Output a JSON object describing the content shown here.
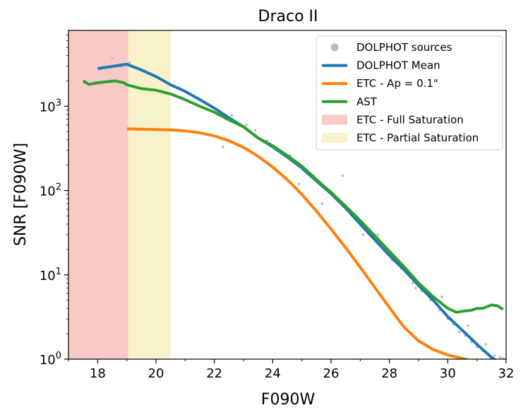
{
  "chart_data": {
    "type": "line",
    "title": "Draco II",
    "xlabel": "F090W",
    "ylabel": "SNR [F090W]",
    "xlim": [
      17,
      32
    ],
    "ylim_log10": [
      0,
      3.9
    ],
    "y_scale": "log",
    "x_ticks": [
      18,
      20,
      22,
      24,
      26,
      28,
      30,
      32
    ],
    "x_tick_labels": [
      "18",
      "20",
      "22",
      "24",
      "26",
      "28",
      "30",
      "32"
    ],
    "y_ticks": [
      1,
      10,
      100,
      1000
    ],
    "y_tick_labels": [
      {
        "base": "10",
        "exp": "0"
      },
      {
        "base": "10",
        "exp": "1"
      },
      {
        "base": "10",
        "exp": "2"
      },
      {
        "base": "10",
        "exp": "3"
      }
    ],
    "shaded_regions": [
      {
        "name": "ETC - Full Saturation",
        "x_range": [
          17,
          19.05
        ],
        "color": "#f4a6a0"
      },
      {
        "name": "ETC - Partial Saturation",
        "x_range": [
          19.05,
          20.5
        ],
        "color": "#f4e9a8"
      }
    ],
    "series": [
      {
        "name": "DOLPHOT Mean",
        "color": "#1f77b4",
        "x": [
          18.0,
          19.0,
          19.5,
          20.0,
          20.5,
          21.0,
          21.5,
          22.0,
          22.5,
          23.0,
          23.5,
          24.0,
          24.5,
          25.0,
          25.5,
          26.0,
          26.5,
          27.0,
          27.5,
          28.0,
          28.5,
          29.0,
          29.5,
          30.0,
          30.5,
          31.0,
          31.5,
          31.8
        ],
        "y": [
          2800,
          3150,
          2700,
          2250,
          1800,
          1500,
          1200,
          950,
          730,
          570,
          420,
          330,
          250,
          185,
          130,
          92,
          62,
          40,
          26,
          17,
          11.5,
          7.5,
          5,
          3.2,
          2.2,
          1.5,
          1.05,
          0.9
        ]
      },
      {
        "name": "ETC - Ap = 0.1\"",
        "color": "#ff7f0e",
        "x": [
          19.0,
          19.5,
          20.0,
          20.5,
          21.0,
          21.5,
          22.0,
          22.5,
          23.0,
          23.5,
          24.0,
          24.5,
          25.0,
          25.5,
          26.0,
          26.5,
          27.0,
          27.5,
          28.0,
          28.5,
          29.0,
          29.5,
          30.0,
          30.5,
          30.7
        ],
        "y": [
          540,
          535,
          530,
          525,
          510,
          485,
          445,
          390,
          325,
          255,
          190,
          135,
          90,
          57,
          35,
          21,
          12.3,
          7.1,
          4.1,
          2.4,
          1.65,
          1.3,
          1.12,
          1.02,
          0.98
        ]
      },
      {
        "name": "AST",
        "color": "#2ca02c",
        "x": [
          17.5,
          17.7,
          18.0,
          18.3,
          18.6,
          18.9,
          19.0,
          19.5,
          20.0,
          20.5,
          21.0,
          21.5,
          22.0,
          22.5,
          23.0,
          23.5,
          24.0,
          24.5,
          25.0,
          25.5,
          26.0,
          26.5,
          27.0,
          27.5,
          28.0,
          28.5,
          29.0,
          29.5,
          30.0,
          30.3,
          30.5,
          30.8,
          31.0,
          31.2,
          31.5,
          31.7,
          31.9
        ],
        "y": [
          2000,
          1820,
          1900,
          1950,
          2000,
          1900,
          1800,
          1620,
          1550,
          1400,
          1200,
          1000,
          850,
          690,
          570,
          420,
          340,
          260,
          195,
          135,
          95,
          65,
          44,
          29,
          19,
          12.5,
          8,
          5.5,
          4,
          3.6,
          3.7,
          3.8,
          4.0,
          4.0,
          4.4,
          4.3,
          3.9
        ]
      }
    ],
    "scatter": {
      "name": "DOLPHOT sources",
      "color": "#bbbbbb",
      "x": [
        18.5,
        18.8,
        19.1,
        19.6,
        20.2,
        20.8,
        21.3,
        21.9,
        22.3,
        22.6,
        23.1,
        23.4,
        23.8,
        24.2,
        24.6,
        25.1,
        25.4,
        25.8,
        26.2,
        26.6,
        26.9,
        27.3,
        27.7,
        28.1,
        28.4,
        28.8,
        29.1,
        29.4,
        29.7,
        30.0,
        30.2,
        30.4,
        30.6,
        30.8,
        31.0,
        31.2,
        31.4,
        31.6,
        31.8,
        31.9,
        26.4,
        27.6,
        28.9,
        29.8,
        30.7,
        31.3,
        24.9,
        22.4,
        25.7,
        27.1
      ],
      "y": [
        3700,
        3000,
        3300,
        2650,
        2050,
        1650,
        1300,
        1000,
        330,
        780,
        600,
        520,
        390,
        300,
        260,
        170,
        150,
        110,
        80,
        60,
        48,
        34,
        23,
        15,
        12,
        8,
        6.5,
        5,
        3.8,
        3,
        2.6,
        2.1,
        1.9,
        1.6,
        1.4,
        1.25,
        1.15,
        1.1,
        1.05,
        1.02,
        150,
        30,
        7,
        5.5,
        2.5,
        1.5,
        120,
        700,
        70,
        30
      ]
    },
    "legend": {
      "placement": "top-right",
      "entries": [
        {
          "label": "DOLPHOT sources",
          "kind": "marker",
          "color": "#bbbbbb"
        },
        {
          "label": "DOLPHOT Mean",
          "kind": "line",
          "color": "#1f77b4"
        },
        {
          "label": "ETC - Ap = 0.1\"",
          "kind": "line",
          "color": "#ff7f0e"
        },
        {
          "label": "AST",
          "kind": "line",
          "color": "#2ca02c"
        },
        {
          "label": "ETC - Full Saturation",
          "kind": "patch",
          "color": "#f4a6a0"
        },
        {
          "label": "ETC - Partial Saturation",
          "kind": "patch",
          "color": "#f4e9a8"
        }
      ]
    }
  }
}
